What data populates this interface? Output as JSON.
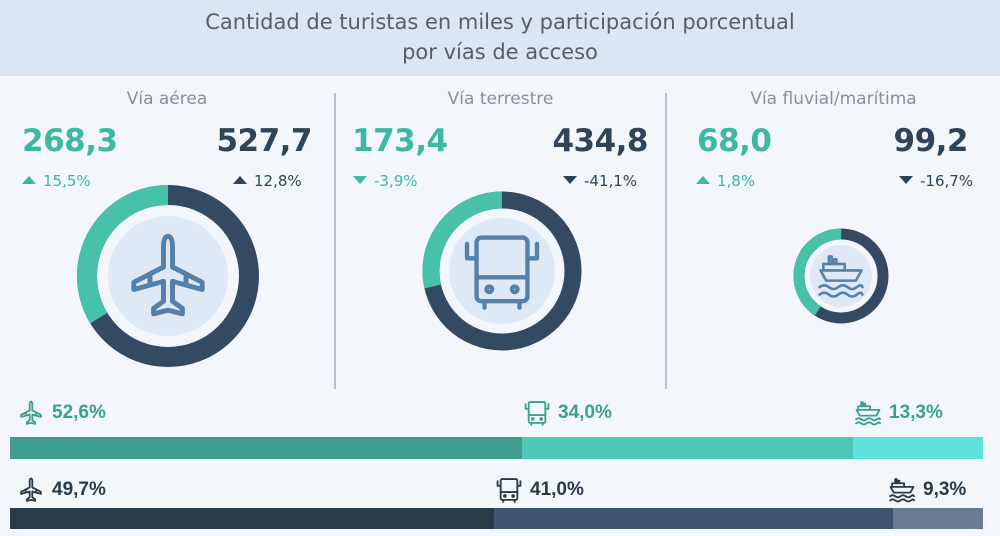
{
  "title": {
    "line1": "Cantidad de turistas en miles y participación porcentual",
    "line2": "por vías de acceso"
  },
  "panels": [
    {
      "id": "aerea",
      "title": "Vía aérea",
      "icon": "airplane-icon",
      "left_value": "268,3",
      "left_change": "15,5%",
      "left_trend": "up",
      "right_value": "527,7",
      "right_change": "12,8%",
      "right_trend": "up"
    },
    {
      "id": "terrestre",
      "title": "Vía terrestre",
      "icon": "truck-icon",
      "left_value": "173,4",
      "left_change": "-3,9%",
      "left_trend": "down",
      "right_value": "434,8",
      "right_change": "-41,1%",
      "right_trend": "down"
    },
    {
      "id": "fluvial",
      "title": "Vía fluvial/marítima",
      "icon": "ship-icon",
      "left_value": "68,0",
      "left_change": "1,8%",
      "left_trend": "up",
      "right_value": "99,2",
      "right_change": "-16,7%",
      "right_trend": "down"
    }
  ],
  "bars": [
    {
      "name": "top-share-bar",
      "segments": [
        {
          "label": "52,6%",
          "value": 52.6,
          "icon": "airplane-icon",
          "color": "#3f9d8e"
        },
        {
          "label": "34,0%",
          "value": 34.0,
          "icon": "truck-icon",
          "color": "#4fc8b8"
        },
        {
          "label": "13,3%",
          "value": 13.3,
          "icon": "ship-icon",
          "color": "#5ee2dc"
        }
      ]
    },
    {
      "name": "bottom-share-bar",
      "segments": [
        {
          "label": "49,7%",
          "value": 49.7,
          "icon": "airplane-icon",
          "color": "#2a3a4a"
        },
        {
          "label": "41,0%",
          "value": 41.0,
          "icon": "truck-icon",
          "color": "#3e5672"
        },
        {
          "label": "9,3%",
          "value": 9.3,
          "icon": "ship-icon",
          "color": "#687c92"
        }
      ]
    }
  ],
  "colors": {
    "teal": "#3cb8a3",
    "navy": "#2f4459",
    "donut_green": "#48c1a9",
    "donut_dark": "#344a62",
    "donut_center": "#dfe9f5",
    "icon_stroke": "#5580a9"
  },
  "chart_data": [
    {
      "type": "pie",
      "title": "Vía aérea",
      "series": [
        {
          "values": [
            268.3,
            527.7
          ]
        }
      ],
      "changes": [
        "15,5%",
        "12,8%"
      ]
    },
    {
      "type": "pie",
      "title": "Vía terrestre",
      "series": [
        {
          "values": [
            173.4,
            434.8
          ]
        }
      ],
      "changes": [
        "-3,9%",
        "-41,1%"
      ]
    },
    {
      "type": "pie",
      "title": "Vía fluvial/marítima",
      "series": [
        {
          "values": [
            68.0,
            99.2
          ]
        }
      ],
      "changes": [
        "1,8%",
        "-16,7%"
      ]
    },
    {
      "type": "bar",
      "categories": [
        "Vía aérea",
        "Vía terrestre",
        "Vía fluvial/marítima"
      ],
      "series": [
        {
          "values": [
            52.6,
            34.0,
            13.3
          ]
        },
        {
          "values": [
            49.7,
            41.0,
            9.3
          ]
        }
      ]
    }
  ]
}
